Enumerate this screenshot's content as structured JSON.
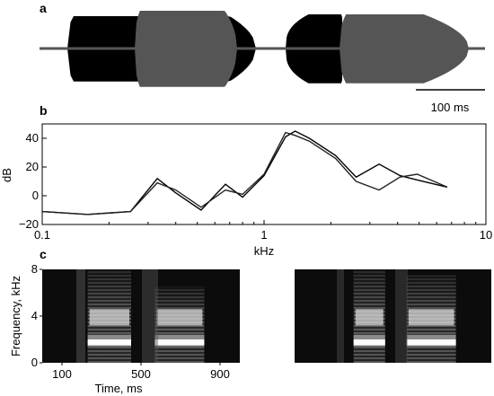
{
  "panels": {
    "a": {
      "label": "a",
      "scale_bar_label": "100 ms",
      "colors": {
        "first": "#000000",
        "second": "#555555"
      }
    },
    "b": {
      "label": "b"
    },
    "c": {
      "label": "c"
    }
  },
  "chart_data": [
    {
      "type": "line",
      "panel": "b",
      "xlabel": "kHz",
      "ylabel": "dB",
      "xscale": "log",
      "xlim": [
        0.1,
        10
      ],
      "ylim": [
        -20,
        50
      ],
      "xticks": [
        0.1,
        1,
        10
      ],
      "xtick_labels": [
        "0.1",
        "1",
        "10"
      ],
      "yticks": [
        -20,
        0,
        20,
        40
      ],
      "ytick_labels": [
        "−20",
        "0",
        "20",
        "40"
      ],
      "grid": false,
      "series": [
        {
          "color": "#000000",
          "x": [
            0.1,
            0.16,
            0.25,
            0.33,
            0.4,
            0.52,
            0.67,
            0.8,
            1.0,
            1.25,
            1.38,
            1.6,
            2.1,
            2.6,
            3.3,
            4.1,
            4.9,
            6.7
          ],
          "values": [
            -11,
            -13,
            -11,
            12,
            2,
            -10,
            8,
            -1,
            14,
            41,
            45,
            40,
            28,
            13,
            22,
            14,
            11,
            6
          ]
        },
        {
          "color": "#222222",
          "x": [
            0.1,
            0.16,
            0.25,
            0.33,
            0.4,
            0.52,
            0.67,
            0.8,
            1.0,
            1.25,
            1.38,
            1.6,
            2.1,
            2.6,
            3.3,
            4.1,
            4.9,
            6.7
          ],
          "values": [
            -11,
            -13,
            -11,
            9,
            4,
            -8,
            4,
            1,
            15,
            44,
            42,
            38,
            26,
            10,
            4,
            13,
            15,
            6
          ]
        }
      ]
    },
    {
      "type": "heatmap",
      "panel": "c-left",
      "xlabel": "Time, ms",
      "ylabel": "Frequency, kHz",
      "xticks": [
        100,
        500,
        900
      ],
      "xtick_labels": [
        "100",
        "500",
        "900"
      ],
      "yticks": [
        0,
        4,
        8
      ],
      "ytick_labels": [
        "0",
        "4",
        "8"
      ],
      "xlim": [
        0,
        1000
      ],
      "ylim": [
        0,
        8
      ]
    },
    {
      "type": "heatmap",
      "panel": "c-right",
      "xlim": [
        0,
        1000
      ],
      "ylim": [
        0,
        8
      ]
    }
  ]
}
